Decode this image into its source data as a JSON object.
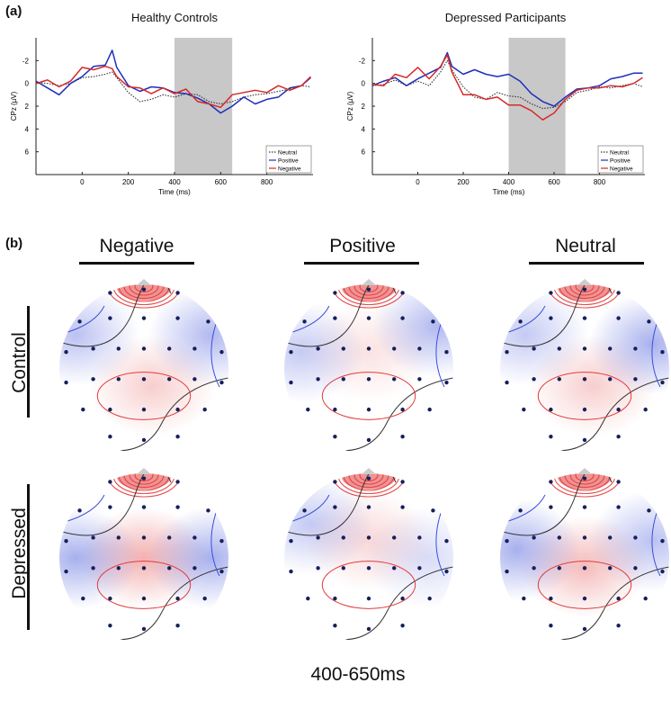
{
  "panel_a_label": "(a)",
  "panel_b_label": "(b)",
  "chart_data": [
    {
      "type": "line",
      "title": "Healthy Controls",
      "xlabel": "Time (ms)",
      "ylabel": "CPz (µV)",
      "xlim": [
        -200,
        1000
      ],
      "ylim": [
        -4,
        8
      ],
      "y_inverted": true,
      "xticks": [
        0,
        200,
        400,
        600,
        800
      ],
      "yticks": [
        -2,
        0,
        2,
        4,
        6
      ],
      "shaded_window": [
        400,
        650
      ],
      "legend_position": "bottom-right",
      "x": [
        -200,
        -150,
        -100,
        -50,
        0,
        50,
        100,
        130,
        150,
        200,
        250,
        300,
        350,
        400,
        450,
        500,
        550,
        600,
        650,
        700,
        750,
        800,
        850,
        900,
        950,
        990
      ],
      "series": [
        {
          "name": "Neutral",
          "color": "#333333",
          "style": "dotted",
          "values": [
            -0.1,
            0.0,
            0.2,
            0.0,
            -0.5,
            -0.6,
            -0.8,
            -1.0,
            -0.5,
            0.8,
            1.6,
            1.4,
            1.0,
            1.2,
            0.9,
            1.0,
            1.6,
            1.8,
            1.6,
            1.2,
            1.0,
            0.9,
            0.7,
            0.5,
            0.2,
            0.3
          ]
        },
        {
          "name": "Positive",
          "color": "#1f2fb8",
          "style": "solid",
          "values": [
            -0.2,
            0.4,
            1.0,
            0.0,
            -0.6,
            -1.5,
            -1.6,
            -2.9,
            -1.4,
            0.2,
            0.7,
            0.3,
            0.4,
            0.8,
            0.9,
            1.3,
            1.8,
            2.6,
            2.0,
            1.2,
            1.8,
            1.4,
            1.2,
            0.4,
            0.2,
            -0.5
          ]
        },
        {
          "name": "Negative",
          "color": "#d42a2a",
          "style": "solid",
          "values": [
            0.0,
            -0.3,
            0.3,
            -0.2,
            -1.4,
            -1.2,
            -1.5,
            -1.3,
            -0.6,
            0.3,
            0.4,
            0.9,
            0.4,
            0.9,
            0.5,
            1.6,
            1.8,
            2.1,
            1.0,
            0.8,
            0.6,
            0.8,
            0.2,
            0.6,
            0.2,
            -0.6
          ]
        }
      ]
    },
    {
      "type": "line",
      "title": "Depressed Participants",
      "xlabel": "Time (ms)",
      "ylabel": "CPz (µV)",
      "xlim": [
        -200,
        1000
      ],
      "ylim": [
        -4,
        8
      ],
      "y_inverted": true,
      "xticks": [
        0,
        200,
        400,
        600,
        800
      ],
      "yticks": [
        -2,
        0,
        2,
        4,
        6
      ],
      "shaded_window": [
        400,
        650
      ],
      "legend_position": "bottom-right",
      "x": [
        -200,
        -150,
        -100,
        -50,
        0,
        50,
        100,
        130,
        150,
        200,
        250,
        300,
        350,
        400,
        450,
        500,
        550,
        600,
        650,
        700,
        750,
        800,
        850,
        900,
        950,
        990
      ],
      "series": [
        {
          "name": "Neutral",
          "color": "#333333",
          "style": "dotted",
          "values": [
            0.2,
            0.1,
            -0.3,
            0.2,
            -0.2,
            0.2,
            -1.0,
            -2.0,
            -1.2,
            0.3,
            1.2,
            1.4,
            0.8,
            1.1,
            1.2,
            1.8,
            2.2,
            2.1,
            1.6,
            0.8,
            0.6,
            0.3,
            0.4,
            0.2,
            0.0,
            0.3
          ]
        },
        {
          "name": "Positive",
          "color": "#1f2fb8",
          "style": "solid",
          "values": [
            0.2,
            -0.2,
            -0.5,
            0.2,
            -0.4,
            -0.9,
            -1.4,
            -2.7,
            -1.5,
            -0.8,
            -1.2,
            -0.8,
            -0.6,
            -0.8,
            -0.2,
            0.9,
            1.6,
            2.0,
            1.2,
            0.5,
            0.4,
            0.2,
            -0.4,
            -0.6,
            -0.9,
            -0.9
          ]
        },
        {
          "name": "Negative",
          "color": "#d42a2a",
          "style": "solid",
          "values": [
            0.1,
            0.2,
            -0.8,
            -0.5,
            -1.4,
            -0.4,
            -1.5,
            -2.5,
            -1.0,
            1.0,
            1.0,
            1.4,
            1.2,
            1.9,
            1.9,
            2.4,
            3.2,
            2.6,
            1.4,
            0.6,
            0.4,
            0.4,
            0.2,
            0.3,
            0.0,
            -0.5
          ]
        }
      ]
    }
  ],
  "topo": {
    "columns": [
      "Negative",
      "Positive",
      "Neutral"
    ],
    "rows": [
      "Control",
      "Depressed"
    ],
    "time_window_label": "400-650ms",
    "positive_color": "#e23a3a",
    "negative_color": "#3b4fd8",
    "electrode_color": "#15205c"
  }
}
